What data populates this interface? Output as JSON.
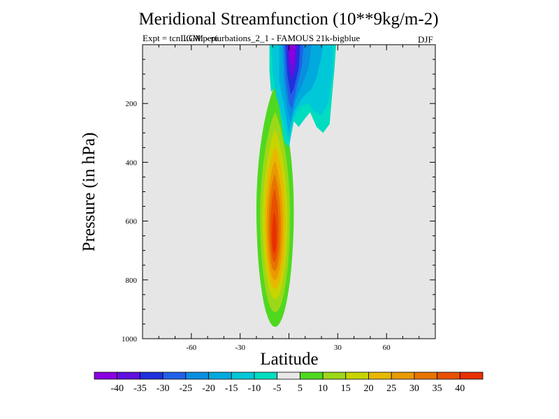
{
  "chart_data": {
    "type": "heatmap",
    "title": "Meridional Streamfunction (10**9kg/m-2)",
    "subtitle": "Expt = tcnLGM perturbations_2_1 - FAMOUS 21k-bigblue",
    "subtitle_overlap": "LGM - pi",
    "season": "DJF",
    "xlabel": "Latitude",
    "ylabel": "Pressure (in hPa)",
    "xlim": [
      -90,
      90
    ],
    "ylim": [
      1000,
      0
    ],
    "xticks": [
      -60,
      -30,
      0,
      30,
      60
    ],
    "xtick_labels": [
      "-60",
      "-30",
      "",
      "30",
      "60"
    ],
    "yticks": [
      200,
      400,
      600,
      800,
      1000
    ],
    "ytick_labels": [
      "200",
      "400",
      "600",
      "800",
      "1000"
    ],
    "colorbar": {
      "labels": [
        "-40",
        "-35",
        "-30",
        "-25",
        "-20",
        "-15",
        "-10",
        "-5",
        "5",
        "10",
        "15",
        "20",
        "25",
        "30",
        "35",
        "40"
      ],
      "colors": [
        "#8a00e0",
        "#6010e0",
        "#2030dd",
        "#2060e8",
        "#0a8ee0",
        "#00aadd",
        "#00c8d8",
        "#00dcc0",
        "#e8e8e8",
        "#50d820",
        "#9cd818",
        "#c8d400",
        "#e8b800",
        "#e89a00",
        "#e87400",
        "#e85000",
        "#e83000"
      ]
    },
    "positive_cell": {
      "lat_range": [
        -20,
        2
      ],
      "p_range": [
        140,
        960
      ],
      "peak_value": 40,
      "peak_lat": -9,
      "peak_p": 650
    },
    "negative_cell": {
      "lat_range": [
        -9,
        30
      ],
      "p_range": [
        0,
        310
      ],
      "peak_value": -40,
      "peak_lat": 3,
      "peak_p": 50
    }
  }
}
